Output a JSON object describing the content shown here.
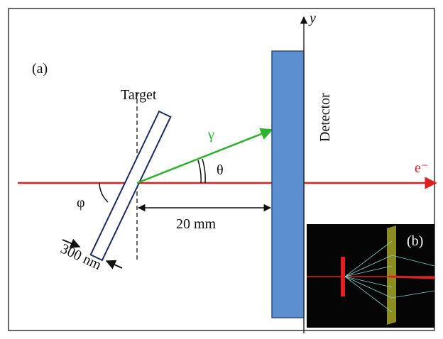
{
  "panel_a": {
    "label": "(a)",
    "target": "Target",
    "gamma": "γ",
    "theta": "θ",
    "electron": "e⁻",
    "axis_y": "y",
    "detector": "Detector",
    "phi": "φ",
    "distance": "20 mm",
    "thickness": "300 nm"
  },
  "panel_b": {
    "label": "(b)"
  }
}
